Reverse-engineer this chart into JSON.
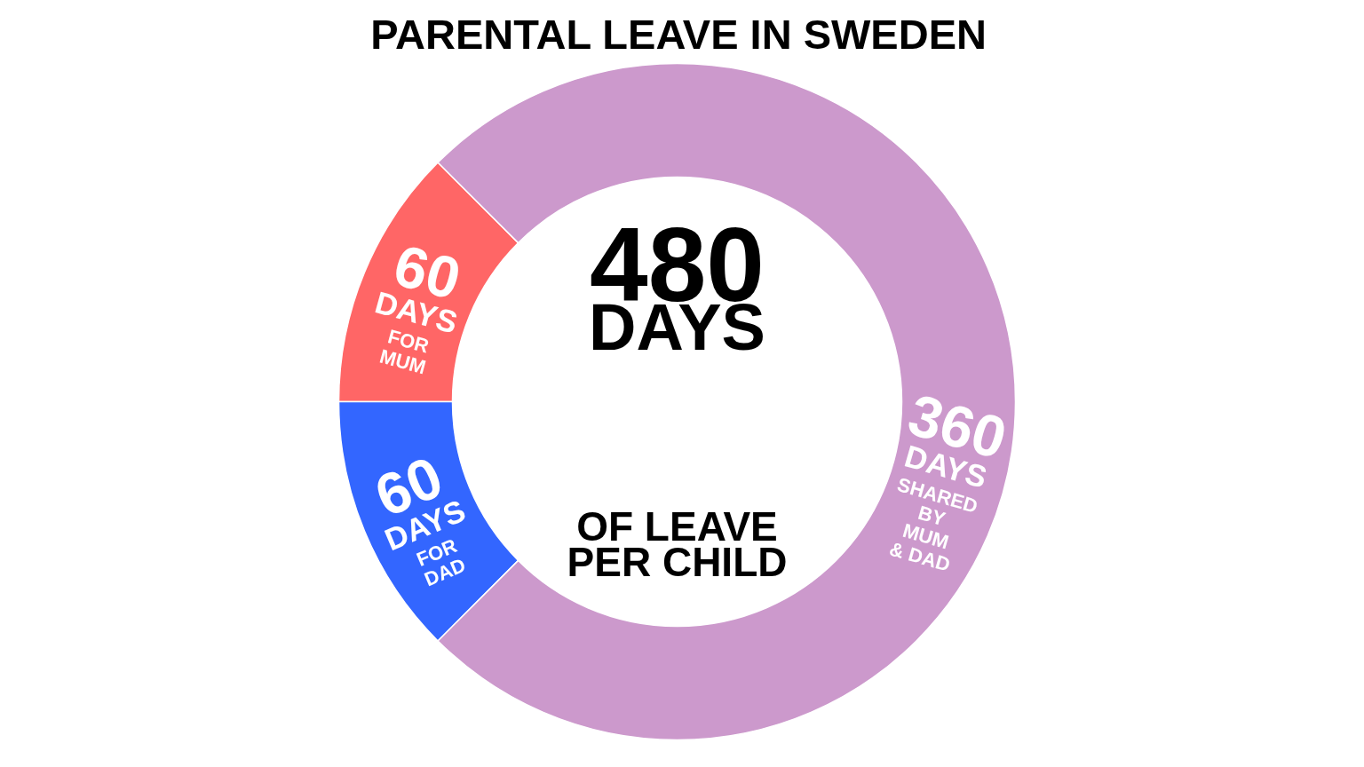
{
  "chart_data": {
    "type": "donut",
    "title": "PARENTAL LEAVE IN SWEDEN",
    "categories": [
      "FOR MUM",
      "FOR DAD",
      "SHARED BY MUM & DAD"
    ],
    "values": [
      60,
      60,
      360
    ],
    "colors": [
      "#ff6666",
      "#3366ff",
      "#cc99cc"
    ],
    "value_labels": [
      "60 DAYS",
      "60 DAYS",
      "360 DAYS"
    ],
    "annotations": [
      "480 DAYS",
      "OF LEAVE PER CHILD"
    ]
  }
}
